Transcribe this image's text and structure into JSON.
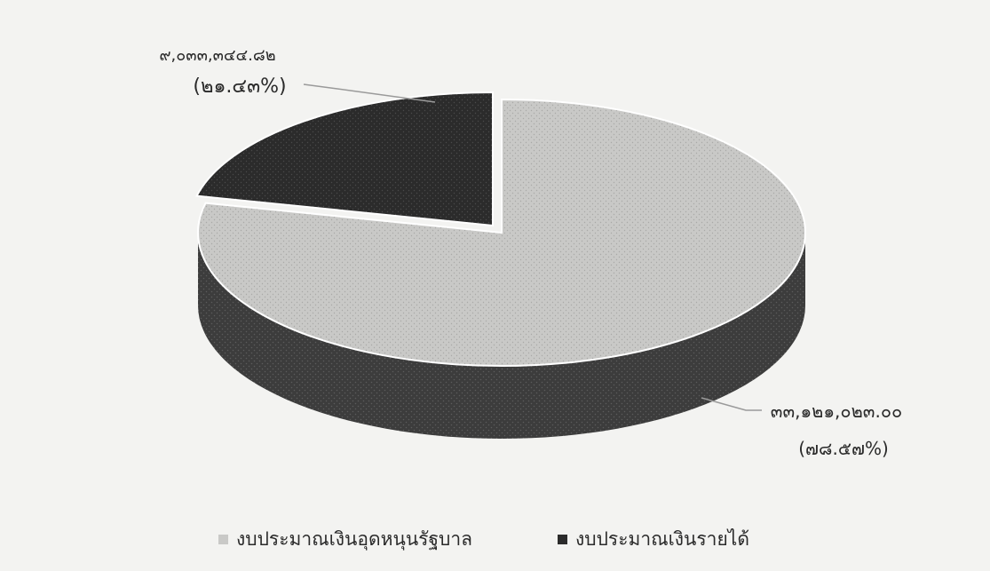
{
  "chart_data": {
    "type": "pie",
    "style": "3d",
    "title": "",
    "series": [
      {
        "name": "งบประมาณเงินอุดหนุนรัฐบาล",
        "value_label": "๓๓,๑๒๑,๐๒๓.๐๐",
        "percent_label": "(๗๘.๕๗%)",
        "percent": 78.57,
        "color": "#c9c9c7"
      },
      {
        "name": "งบประมาณเงินรายได้",
        "value_label": "๙,๐๓๓,๓๔๔.๘๒",
        "percent_label": "(๒๑.๔๓%)",
        "percent": 21.43,
        "color": "#2b2b2b"
      }
    ],
    "legend_position": "bottom"
  }
}
